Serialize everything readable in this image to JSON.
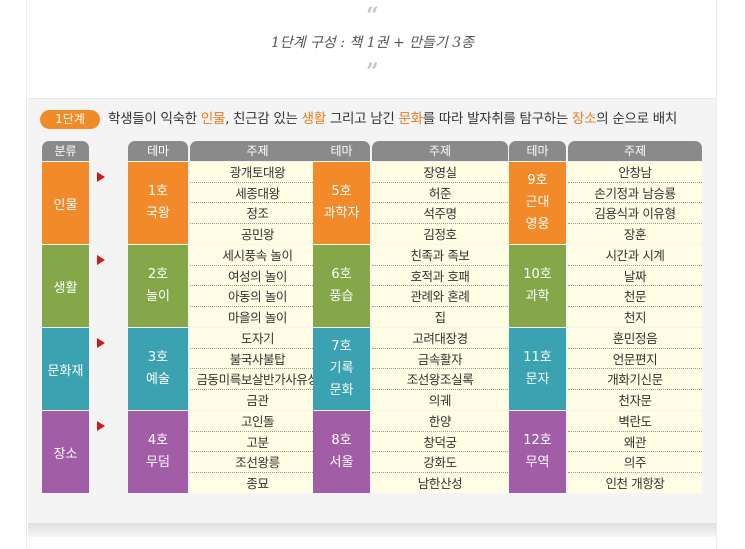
{
  "heading": {
    "open_quote": "“",
    "title": "1단계 구성 : 책 1권 + 만들기 3종",
    "close_quote": "”"
  },
  "intro": {
    "badge": "1단계",
    "segments": [
      {
        "text": "학생들이 익숙한 ",
        "highlight": false
      },
      {
        "text": "인물",
        "highlight": true
      },
      {
        "text": ", 친근감 있는 ",
        "highlight": false
      },
      {
        "text": "생활",
        "highlight": true
      },
      {
        "text": " 그리고 남긴 ",
        "highlight": false
      },
      {
        "text": "문화",
        "highlight": true
      },
      {
        "text": "를 따라 발자취를 탐구하는 ",
        "highlight": false
      },
      {
        "text": "장소",
        "highlight": true
      },
      {
        "text": "의 순으로 배치",
        "highlight": false
      }
    ]
  },
  "colors": {
    "highlight": "#ec7a1c",
    "badge": "#f08c28",
    "arrow": "#d21919",
    "header": "#8a8a8a",
    "topic_bg": "#fffde3",
    "rows": [
      "#f28a29",
      "#86a749",
      "#3aa2b0",
      "#a15da6"
    ]
  },
  "table": {
    "headers": {
      "category": "분류",
      "theme": "테마",
      "topic": "주제"
    },
    "icon": "right-triangle-arrow-icon",
    "rows": [
      {
        "category": "인물",
        "groups": [
          {
            "theme": [
              "1호",
              "국왕"
            ],
            "topics": [
              "광개토대왕",
              "세종대왕",
              "정조",
              "공민왕"
            ]
          },
          {
            "theme": [
              "5호",
              "과학자"
            ],
            "topics": [
              "장영실",
              "허준",
              "석주명",
              "김정호"
            ]
          },
          {
            "theme": [
              "9호",
              "근대",
              "영웅"
            ],
            "topics": [
              "안창남",
              "손기정과 남승룡",
              "김용식과 이유형",
              "장훈"
            ]
          }
        ]
      },
      {
        "category": "생활",
        "groups": [
          {
            "theme": [
              "2호",
              "놀이"
            ],
            "topics": [
              "세시풍속 놀이",
              "여성의 놀이",
              "아동의 놀이",
              "마을의 놀이"
            ]
          },
          {
            "theme": [
              "6호",
              "풍습"
            ],
            "topics": [
              "친족과 족보",
              "호적과 호패",
              "관례와 혼례",
              "집"
            ]
          },
          {
            "theme": [
              "10호",
              "과학"
            ],
            "topics": [
              "시간과 시계",
              "날짜",
              "천문",
              "천지"
            ]
          }
        ]
      },
      {
        "category": "문화재",
        "groups": [
          {
            "theme": [
              "3호",
              "예술"
            ],
            "topics": [
              "도자기",
              "불국사불탑",
              "금동미륵보살반가사유상",
              "금관"
            ]
          },
          {
            "theme": [
              "7호",
              "기록",
              "문화"
            ],
            "topics": [
              "고려대장경",
              "금속활자",
              "조선왕조실록",
              "의궤"
            ]
          },
          {
            "theme": [
              "11호",
              "문자"
            ],
            "topics": [
              "훈민정음",
              "언문편지",
              "개화기신문",
              "천자문"
            ]
          }
        ]
      },
      {
        "category": "장소",
        "groups": [
          {
            "theme": [
              "4호",
              "무덤"
            ],
            "topics": [
              "고인돌",
              "고분",
              "조선왕릉",
              "종묘"
            ]
          },
          {
            "theme": [
              "8호",
              "서울"
            ],
            "topics": [
              "한양",
              "창덕궁",
              "강화도",
              "남한산성"
            ]
          },
          {
            "theme": [
              "12호",
              "무역"
            ],
            "topics": [
              "벽란도",
              "왜관",
              "의주",
              "인천 개항장"
            ]
          }
        ]
      }
    ]
  }
}
